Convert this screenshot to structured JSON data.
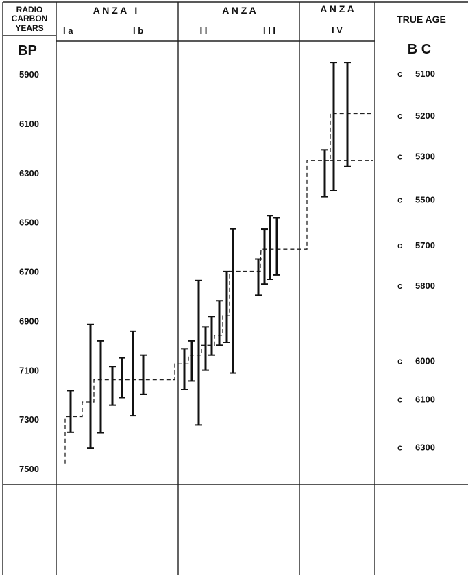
{
  "header": {
    "col0": [
      "RADIO",
      "CARBON",
      "YEARS"
    ],
    "anza1_title": "A N Z A   I",
    "anza1_sub_a": "I a",
    "anza1_sub_b": "I b",
    "anza23_title": "A N Z A",
    "anza23_sub_2": "I I",
    "anza23_sub_3": "I I I",
    "anza4_title": "A N Z A",
    "anza4_sub": "I V",
    "true_age": "TRUE AGE",
    "bp": "BP",
    "bc": "B C"
  },
  "chart_data": {
    "type": "error-bar",
    "y_axis": {
      "unit_label": "BP",
      "ticks": [
        5900,
        6100,
        6300,
        6500,
        6700,
        6900,
        7100,
        7300,
        7500
      ],
      "reversed": true
    },
    "phases": [
      "I a",
      "I b",
      "I I",
      "I I I",
      "I V"
    ],
    "true_age_labels": [
      {
        "prefix": "c",
        "value": "5100",
        "at_bp": 5900
      },
      {
        "prefix": "c",
        "value": "5200",
        "at_bp": 6070
      },
      {
        "prefix": "c",
        "value": "5300",
        "at_bp": 6235
      },
      {
        "prefix": "c",
        "value": "5500",
        "at_bp": 6410
      },
      {
        "prefix": "c",
        "value": "5700",
        "at_bp": 6595
      },
      {
        "prefix": "c",
        "value": "5800",
        "at_bp": 6760
      },
      {
        "prefix": "c",
        "value": "6000",
        "at_bp": 7065
      },
      {
        "prefix": "c",
        "value": "6100",
        "at_bp": 7220
      },
      {
        "prefix": "c",
        "value": "6300",
        "at_bp": 7415
      }
    ],
    "dates": [
      {
        "phase": "I a",
        "low": 7184,
        "high": 7352
      },
      {
        "phase": "I a",
        "low": 6915,
        "high": 7417
      },
      {
        "phase": "I a",
        "low": 6982,
        "high": 7354
      },
      {
        "phase": "I b",
        "low": 7086,
        "high": 7243
      },
      {
        "phase": "I b",
        "low": 7051,
        "high": 7212
      },
      {
        "phase": "I b",
        "low": 6943,
        "high": 7286
      },
      {
        "phase": "I b",
        "low": 7040,
        "high": 7199
      },
      {
        "phase": "I I",
        "low": 7014,
        "high": 7180
      },
      {
        "phase": "I I",
        "low": 6982,
        "high": 7145
      },
      {
        "phase": "I I",
        "low": 6737,
        "high": 7323
      },
      {
        "phase": "I I",
        "low": 6925,
        "high": 7101
      },
      {
        "phase": "I I",
        "low": 6883,
        "high": 7040
      },
      {
        "phase": "I I",
        "low": 6819,
        "high": 7000
      },
      {
        "phase": "I I",
        "low": 6701,
        "high": 6988
      },
      {
        "phase": "I I",
        "low": 6528,
        "high": 7112
      },
      {
        "phase": "I I I",
        "low": 6650,
        "high": 6797
      },
      {
        "phase": "I I I",
        "low": 6529,
        "high": 6752
      },
      {
        "phase": "I I I",
        "low": 6474,
        "high": 6732
      },
      {
        "phase": "I I I",
        "low": 6483,
        "high": 6715
      },
      {
        "phase": "I V",
        "low": 6207,
        "high": 6397
      },
      {
        "phase": "I V",
        "low": 5853,
        "high": 6373
      },
      {
        "phase": "I V",
        "low": 5853,
        "high": 6275
      }
    ],
    "phase_steps": [
      {
        "from": "I a",
        "to": "I b",
        "bp": 7140
      },
      {
        "from": "I b",
        "to": "I I",
        "bp": 7075
      },
      {
        "from": "I I",
        "to": "I I I",
        "bp": 6700
      },
      {
        "from": "I I I",
        "to": "I V",
        "bp": 6610
      },
      {
        "from": "I V",
        "to": "end",
        "bp": 6060
      }
    ]
  }
}
